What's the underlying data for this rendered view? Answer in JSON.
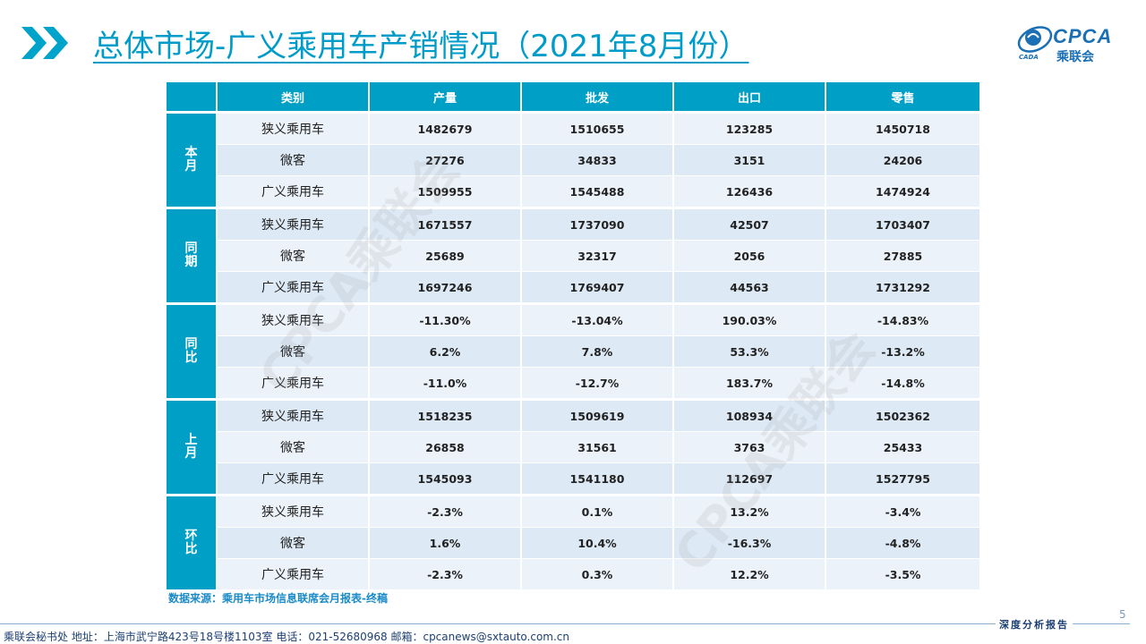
{
  "title": "总体市场-广义乘用车产销情况（2021年8月份）",
  "logo": {
    "text": "CPCA",
    "cn": "乘联会",
    "sub": "CADA"
  },
  "table": {
    "headers": [
      "类别",
      "产量",
      "批发",
      "出口",
      "零售"
    ],
    "groups": [
      {
        "label": "本月",
        "rows": [
          [
            "狭义乘用车",
            "1482679",
            "1510655",
            "123285",
            "1450718"
          ],
          [
            "微客",
            "27276",
            "34833",
            "3151",
            "24206"
          ],
          [
            "广义乘用车",
            "1509955",
            "1545488",
            "126436",
            "1474924"
          ]
        ]
      },
      {
        "label": "同期",
        "rows": [
          [
            "狭义乘用车",
            "1671557",
            "1737090",
            "42507",
            "1703407"
          ],
          [
            "微客",
            "25689",
            "32317",
            "2056",
            "27885"
          ],
          [
            "广义乘用车",
            "1697246",
            "1769407",
            "44563",
            "1731292"
          ]
        ]
      },
      {
        "label": "同比",
        "rows": [
          [
            "狭义乘用车",
            "-11.30%",
            "-13.04%",
            "190.03%",
            "-14.83%"
          ],
          [
            "微客",
            "6.2%",
            "7.8%",
            "53.3%",
            "-13.2%"
          ],
          [
            "广义乘用车",
            "-11.0%",
            "-12.7%",
            "183.7%",
            "-14.8%"
          ]
        ]
      },
      {
        "label": "上月",
        "rows": [
          [
            "狭义乘用车",
            "1518235",
            "1509619",
            "108934",
            "1502362"
          ],
          [
            "微客",
            "26858",
            "31561",
            "3763",
            "25433"
          ],
          [
            "广义乘用车",
            "1545093",
            "1541180",
            "112697",
            "1527795"
          ]
        ]
      },
      {
        "label": "环比",
        "rows": [
          [
            "狭义乘用车",
            "-2.3%",
            "0.1%",
            "13.2%",
            "-3.4%"
          ],
          [
            "微客",
            "1.6%",
            "10.4%",
            "-16.3%",
            "-4.8%"
          ],
          [
            "广义乘用车",
            "-2.3%",
            "0.3%",
            "12.2%",
            "-3.5%"
          ]
        ]
      }
    ]
  },
  "watermark": "CPCA乘联会",
  "source": "数据来源：乘用车市场信息联席会月报表-终稿",
  "page_number": "5",
  "tagline": "深度分析报告",
  "footer": "乘联会秘书处    地址：上海市武宁路423号18号楼1103室    电话：021-52680968    邮箱：cpcanews@sxtauto.com.cn",
  "colors": {
    "accent": "#00a0c6",
    "row_even": "#dde9f5",
    "row_odd": "#ecf2fa",
    "title": "#009cc9"
  }
}
